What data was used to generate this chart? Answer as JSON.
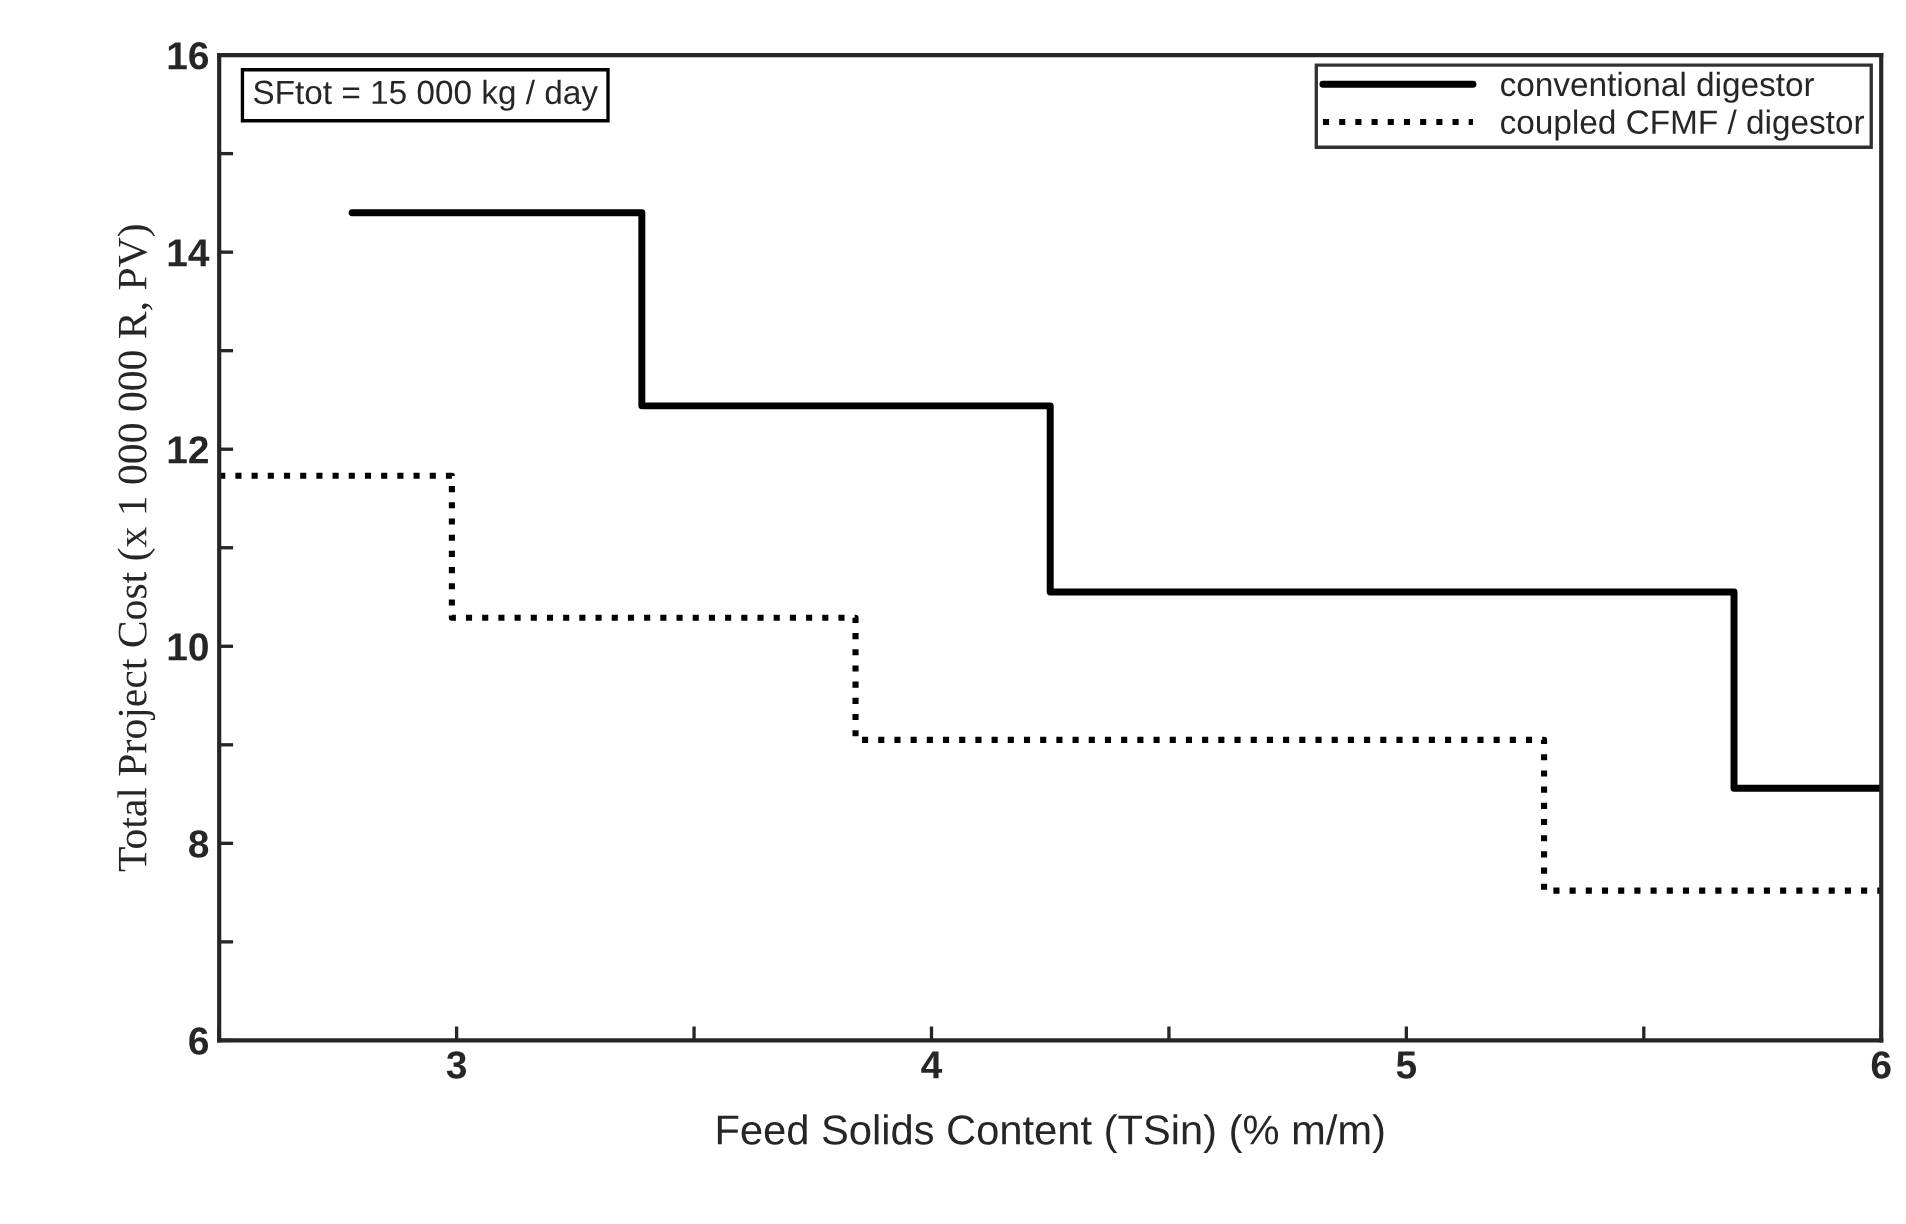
{
  "chart_data": {
    "type": "step",
    "xlabel": "Feed Solids Content (TSin) (% m/m)",
    "ylabel": "Total Project Cost (x 1 000 000 R, PV)",
    "annotations": [
      "SFtot = 15 000 kg / day"
    ],
    "series": [
      {
        "name": "conventional digestor",
        "color": "#000000",
        "line_style": "solid",
        "x": [
          2.78,
          3.39,
          4.25,
          5.69,
          6.0
        ],
        "values": [
          14.4,
          12.44,
          10.55,
          8.56,
          8.56
        ]
      },
      {
        "name": "coupled CFMF / digestor",
        "color": "#000000",
        "line_style": "dotted",
        "x": [
          2.5,
          2.99,
          3.84,
          5.29,
          6.0
        ],
        "values": [
          11.73,
          10.29,
          9.05,
          7.52,
          7.52
        ]
      }
    ],
    "xlim": [
      2.5,
      6
    ],
    "xticks": [
      {
        "value": 2.5,
        "label": null
      },
      3,
      {
        "value": 3.5,
        "label": null
      },
      4,
      {
        "value": 4.5,
        "label": null
      },
      5,
      {
        "value": 5.5,
        "label": null
      },
      6
    ],
    "ylim": [
      6,
      16
    ],
    "yticks": [
      6,
      {
        "value": 7,
        "label": null
      },
      8,
      {
        "value": 9,
        "label": null
      },
      10,
      {
        "value": 11,
        "label": null
      },
      12,
      {
        "value": 13,
        "label": null
      },
      14,
      {
        "value": 15,
        "label": null
      },
      16
    ],
    "grid": false,
    "legend": "top right",
    "marker": "none"
  }
}
